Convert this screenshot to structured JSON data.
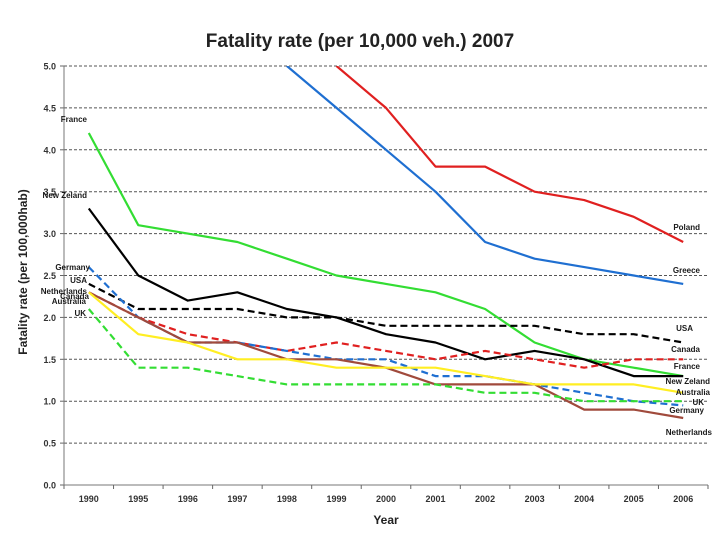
{
  "chart_data": {
    "type": "line",
    "title": "Fatality rate (per 10,000 veh.) 2007",
    "xlabel": "Year",
    "ylabel": "Fatality rate (per 100,000hab)",
    "x": [
      "1990",
      "1995",
      "1996",
      "1997",
      "1998",
      "1999",
      "2000",
      "2001",
      "2002",
      "2003",
      "2004",
      "2005",
      "2006"
    ],
    "ylim": [
      0,
      5
    ],
    "yticks": [
      "0.0",
      "0.5",
      "1.0",
      "1.5",
      "2.0",
      "2.5",
      "3.0",
      "3.5",
      "4.0",
      "4.5",
      "5.0"
    ],
    "grid": "horizontal dashed",
    "legend": "inline labels at line ends",
    "series": [
      {
        "name": "Poland",
        "color": "#e02020",
        "dash": "solid",
        "values": [
          null,
          null,
          null,
          null,
          null,
          5.0,
          4.5,
          3.8,
          3.8,
          3.5,
          3.4,
          3.2,
          2.9
        ]
      },
      {
        "name": "Greece",
        "color": "#1f6fd1",
        "dash": "solid",
        "values": [
          null,
          null,
          null,
          null,
          5.0,
          4.5,
          4.0,
          3.5,
          2.9,
          2.7,
          2.6,
          2.5,
          2.4
        ]
      },
      {
        "name": "France",
        "color": "#33dd33",
        "dash": "solid",
        "values": [
          4.2,
          3.1,
          3.0,
          2.9,
          2.7,
          2.5,
          2.4,
          2.3,
          2.1,
          1.7,
          1.5,
          1.4,
          1.3
        ]
      },
      {
        "name": "New Zeland",
        "color": "#000000",
        "dash": "solid",
        "values": [
          3.3,
          2.5,
          2.2,
          2.3,
          2.1,
          2.0,
          1.8,
          1.7,
          1.5,
          1.6,
          1.5,
          1.3,
          1.3
        ]
      },
      {
        "name": "USA",
        "color": "#000000",
        "dash": "dashed",
        "values": [
          2.4,
          2.1,
          2.1,
          2.1,
          2.0,
          2.0,
          1.9,
          1.9,
          1.9,
          1.9,
          1.8,
          1.8,
          1.7
        ]
      },
      {
        "name": "Canada",
        "color": "#e02020",
        "dash": "dashed",
        "values": [
          2.3,
          2.0,
          1.8,
          1.7,
          1.6,
          1.7,
          1.6,
          1.5,
          1.6,
          1.5,
          1.4,
          1.5,
          1.5
        ]
      },
      {
        "name": "Germany",
        "color": "#1f6fd1",
        "dash": "dashed",
        "values": [
          2.6,
          2.0,
          1.7,
          1.7,
          1.6,
          1.5,
          1.5,
          1.3,
          1.3,
          1.2,
          1.1,
          1.0,
          0.95
        ]
      },
      {
        "name": "Netherlands",
        "color": "#a04a3c",
        "dash": "solid",
        "values": [
          2.3,
          2.0,
          1.7,
          1.7,
          1.5,
          1.5,
          1.4,
          1.2,
          1.2,
          1.2,
          0.9,
          0.9,
          0.8
        ]
      },
      {
        "name": "Australia",
        "color": "#ffee22",
        "dash": "solid",
        "values": [
          2.3,
          1.8,
          1.7,
          1.5,
          1.5,
          1.4,
          1.4,
          1.4,
          1.3,
          1.2,
          1.2,
          1.2,
          1.1
        ]
      },
      {
        "name": "UK",
        "color": "#33dd33",
        "dash": "dashed",
        "values": [
          2.1,
          1.4,
          1.4,
          1.3,
          1.2,
          1.2,
          1.2,
          1.2,
          1.1,
          1.1,
          1.0,
          1.0,
          1.0
        ]
      }
    ],
    "annotations": {
      "left": [
        {
          "text": "France",
          "series": "France"
        },
        {
          "text": "New Zeland",
          "series": "New Zeland"
        },
        {
          "text": "Germany",
          "series": "Germany"
        },
        {
          "text": "USA",
          "series": "USA"
        },
        {
          "text": "Netherlands",
          "series": "Netherlands"
        },
        {
          "text": "Canada",
          "series": "Canada"
        },
        {
          "text": "Australia",
          "series": "Australia"
        },
        {
          "text": "UK",
          "series": "UK"
        }
      ],
      "right": [
        {
          "text": "Poland",
          "series": "Poland"
        },
        {
          "text": "Greece",
          "series": "Greece"
        },
        {
          "text": "USA",
          "series": "USA"
        },
        {
          "text": "Canada",
          "series": "Canada"
        },
        {
          "text": "France",
          "series": "France"
        },
        {
          "text": "New Zeland",
          "series": "New Zeland"
        },
        {
          "text": "Australia",
          "series": "Australia"
        },
        {
          "text": "UK",
          "series": "UK"
        },
        {
          "text": "Germany",
          "series": "Germany"
        },
        {
          "text": "Netherlands",
          "series": "Netherlands"
        }
      ]
    }
  }
}
